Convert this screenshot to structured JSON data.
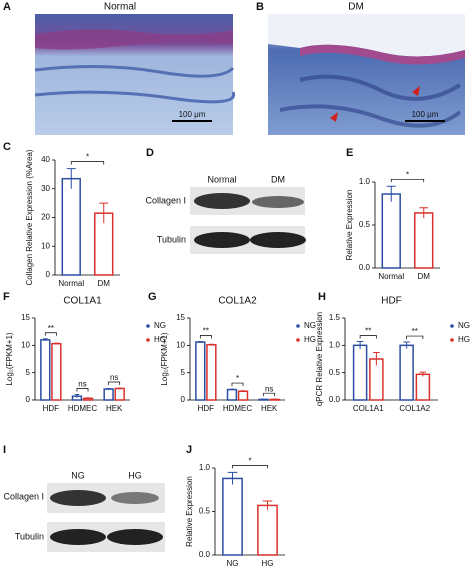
{
  "letters": [
    "A",
    "B",
    "C",
    "D",
    "E",
    "F",
    "G",
    "H",
    "I",
    "J"
  ],
  "images": [
    {
      "title": "Normal",
      "scale": "100 μm"
    },
    {
      "title": "DM",
      "scale": "100 μm"
    }
  ],
  "blots": [
    {
      "lanes": [
        "Normal",
        "DM"
      ],
      "rows": [
        "Collagen I",
        "Tubulin"
      ]
    },
    {
      "lanes": [
        "NG",
        "HG"
      ],
      "rows": [
        "Collagen I",
        "Tubulin"
      ]
    }
  ],
  "chart_data": [
    {
      "type": "bar",
      "ylabel": "Collagen Relative Expression (%Area)",
      "categories": [
        "Normal",
        "DM"
      ],
      "values": [
        33.5,
        21.5
      ],
      "errors": [
        3.5,
        3.5
      ],
      "colors": [
        "#2b4ea2",
        "#d9312b"
      ],
      "significance": [
        "*"
      ],
      "ylim": [
        0,
        40
      ],
      "yticks": [
        0,
        10,
        20,
        30,
        40
      ]
    },
    {
      "type": "bar",
      "ylabel": "Relative Expression",
      "categories": [
        "Normal",
        "DM"
      ],
      "values": [
        0.86,
        0.64
      ],
      "errors": [
        0.09,
        0.06
      ],
      "colors": [
        "#2b4ea2",
        "#d9312b"
      ],
      "significance": [
        "*"
      ],
      "ylim": [
        0,
        1
      ],
      "yticks": [
        {
          "value": 0,
          "label": "0.0"
        },
        {
          "value": 0.5,
          "label": "0.5"
        },
        {
          "value": 1,
          "label": "1.0"
        }
      ]
    },
    {
      "type": "grouped-bar",
      "title": "COL1A1",
      "ylabel": "Log₂(FPKM+1)",
      "categories": [
        "HDF",
        "HDMEC",
        "HEK"
      ],
      "series": [
        {
          "name": "NG",
          "color": "#2b4ea2",
          "values": [
            11.0,
            0.7,
            2.0
          ],
          "errors": [
            0.2,
            0.3,
            0.1
          ]
        },
        {
          "name": "HG",
          "color": "#d9312b",
          "values": [
            10.3,
            0.3,
            2.1
          ],
          "errors": [
            0.1,
            0.1,
            0.1
          ]
        }
      ],
      "significance": [
        "**",
        "ns",
        "ns"
      ],
      "ylim": [
        0,
        15
      ],
      "yticks": [
        0,
        5,
        10,
        15
      ]
    },
    {
      "type": "grouped-bar",
      "title": "COL1A2",
      "ylabel": "Log₂(FPKM+1)",
      "categories": [
        "HDF",
        "HDMEC",
        "HEK"
      ],
      "series": [
        {
          "name": "NG",
          "color": "#2b4ea2",
          "values": [
            10.6,
            1.9,
            0.1
          ],
          "errors": [
            0.1,
            0.1,
            0.05
          ]
        },
        {
          "name": "HG",
          "color": "#d9312b",
          "values": [
            10.1,
            1.6,
            0.1
          ],
          "errors": [
            0.1,
            0.1,
            0.05
          ]
        }
      ],
      "significance": [
        "**",
        "*",
        "ns"
      ],
      "ylim": [
        0,
        15
      ],
      "yticks": [
        0,
        5,
        10,
        15
      ]
    },
    {
      "type": "grouped-bar",
      "title": "HDF",
      "ylabel": "qPCR Relative Expression",
      "categories": [
        "COL1A1",
        "COL1A2"
      ],
      "series": [
        {
          "name": "NG",
          "color": "#2b4ea2",
          "values": [
            1.0,
            1.0
          ],
          "errors": [
            0.07,
            0.06
          ]
        },
        {
          "name": "HG",
          "color": "#d9312b",
          "values": [
            0.75,
            0.47
          ],
          "errors": [
            0.12,
            0.04
          ]
        }
      ],
      "significance": [
        "**",
        "**"
      ],
      "ylim": [
        0,
        1.5
      ],
      "yticks": [
        {
          "value": 0,
          "label": "0.0"
        },
        {
          "value": 0.5,
          "label": "0.5"
        },
        {
          "value": 1,
          "label": "1.0"
        },
        {
          "value": 1.5,
          "label": "1.5"
        }
      ]
    },
    {
      "type": "bar",
      "ylabel": "Relative Expression",
      "categories": [
        "NG",
        "HG"
      ],
      "values": [
        0.88,
        0.57
      ],
      "errors": [
        0.07,
        0.05
      ],
      "colors": [
        "#2b4ea2",
        "#d9312b"
      ],
      "significance": [
        "*"
      ],
      "ylim": [
        0,
        1
      ],
      "yticks": [
        {
          "value": 0,
          "label": "0.0"
        },
        {
          "value": 0.5,
          "label": "0.5"
        },
        {
          "value": 1,
          "label": "1.0"
        }
      ]
    }
  ]
}
